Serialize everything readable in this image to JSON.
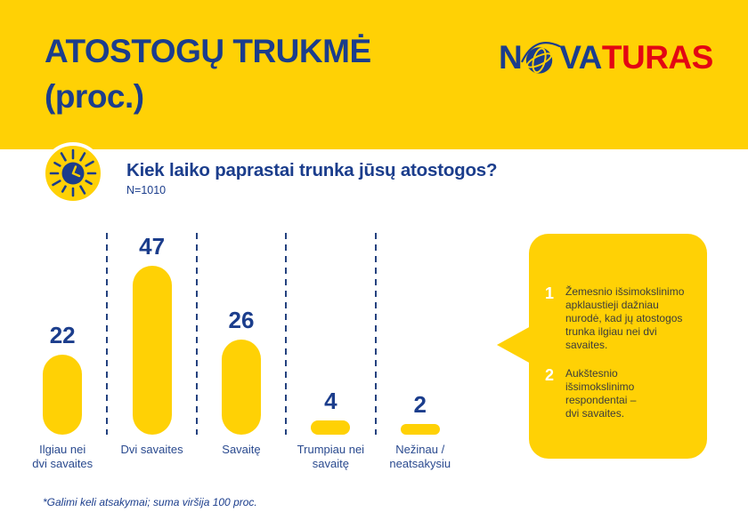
{
  "header": {
    "title_line1": "ATOSTOGŲ TRUKMĖ",
    "title_line2": "(proc.)"
  },
  "logo": {
    "part1": "N",
    "part2": "VA",
    "part3": "TURAS",
    "blue": "#1b3d8c",
    "red": "#e30613"
  },
  "question": {
    "text": "Kiek laiko paprastai trunka jūsų atostogos?",
    "sample": "N=1010"
  },
  "chart_data": {
    "type": "bar",
    "title": "Kiek laiko paprastai trunka jūsų atostogos?",
    "sample": "N=1010",
    "unit": "proc.",
    "categories": [
      "Ilgiau nei dvi savaites",
      "Dvi savaites",
      "Savaitę",
      "Trumpiau nei savaitę",
      "Nežinau / neatsakysiu"
    ],
    "category_lines": [
      "Ilgiau nei\ndvi savaites",
      "Dvi savaites",
      "Savaitę",
      "Trumpiau nei\nsavaitę",
      "Nežinau /\nneatsakysiu"
    ],
    "values": [
      22,
      47,
      26,
      4,
      2
    ],
    "ylim": [
      0,
      55
    ],
    "bar_color": "#ffd105",
    "value_color": "#1b3d8c",
    "legend": "none",
    "grid": "dashed vertical separators between categories",
    "footnote": "*Galimi keli atsakymai; suma viršija 100 proc."
  },
  "callout": {
    "items": [
      {
        "num": "1",
        "text": "Žemesnio išsimokslinimo\napklaustieji dažniau\nnurodė, kad jų atostogos\ntrunka ilgiau nei dvi\nsavaites."
      },
      {
        "num": "2",
        "text": "Aukštesnio\nišsimokslinimo\nrespondentai –\ndvi savaites."
      }
    ]
  },
  "footnote": "*Galimi keli atsakymai; suma viršija 100 proc.",
  "colors": {
    "yellow": "#ffd105",
    "navy": "#1b3d8c",
    "label_blue": "#2a4a8f",
    "red": "#e30613",
    "text_gray": "#3c3c3b",
    "callout_number_white": "#ffffff"
  }
}
